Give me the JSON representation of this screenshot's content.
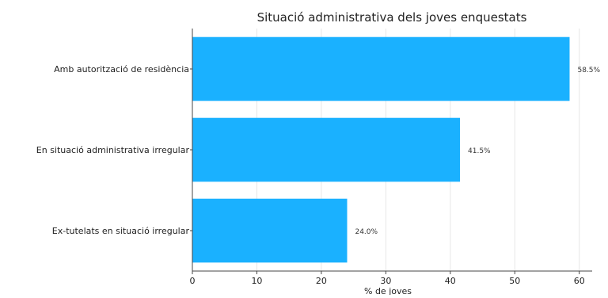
{
  "chart_data": {
    "type": "bar",
    "orientation": "horizontal",
    "title": "Situació administrativa dels joves enquestats",
    "xlabel": "% de joves",
    "ylabel": "",
    "categories": [
      "Amb autorització de residència",
      "En situació administrativa irregular",
      "Ex-tutelats en situació irregular"
    ],
    "values": [
      58.5,
      41.5,
      24.0
    ],
    "value_labels": [
      "58.5%",
      "41.5%",
      "24.0%"
    ],
    "xlim": [
      0,
      62
    ],
    "xticks": [
      0,
      10,
      20,
      30,
      40,
      50,
      60
    ],
    "grid": true,
    "bar_color": "#1ab1ff",
    "grid_color": "#e6e6e6",
    "text_color": "#222222"
  }
}
